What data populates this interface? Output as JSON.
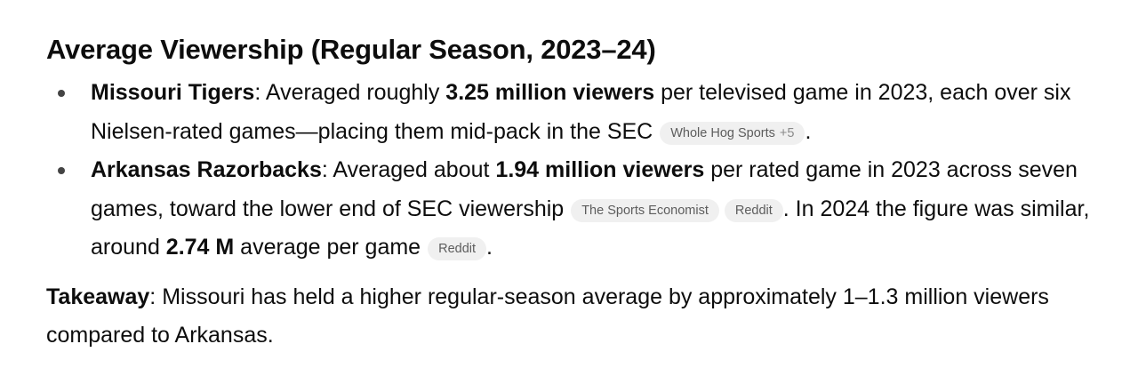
{
  "heading": "Average Viewership (Regular Season, 2023–24)",
  "missouri": {
    "team": "Missouri Tigers",
    "text1": ": Averaged roughly ",
    "bold1": "3.25 million viewers",
    "text2": " per televised game in 2023, each over six Nielsen-rated games—placing them mid-pack in the SEC",
    "source1": "Whole Hog Sports",
    "source1_more": "+5",
    "end": "."
  },
  "arkansas": {
    "team": "Arkansas Razorbacks",
    "text1": ": Averaged about ",
    "bold1": "1.94 million viewers",
    "text2": " per rated game in 2023 across seven games, toward the lower end of SEC viewership",
    "source1": "The Sports Economist",
    "source2": "Reddit",
    "text3": ". In 2024 the figure was similar, around ",
    "bold2": "2.74 M",
    "text4": " average per game",
    "source3": "Reddit",
    "end": "."
  },
  "takeaway": {
    "label": "Takeaway",
    "text": ": Missouri has held a higher regular-season average by approximately 1–1.3 million viewers compared to Arkansas."
  }
}
